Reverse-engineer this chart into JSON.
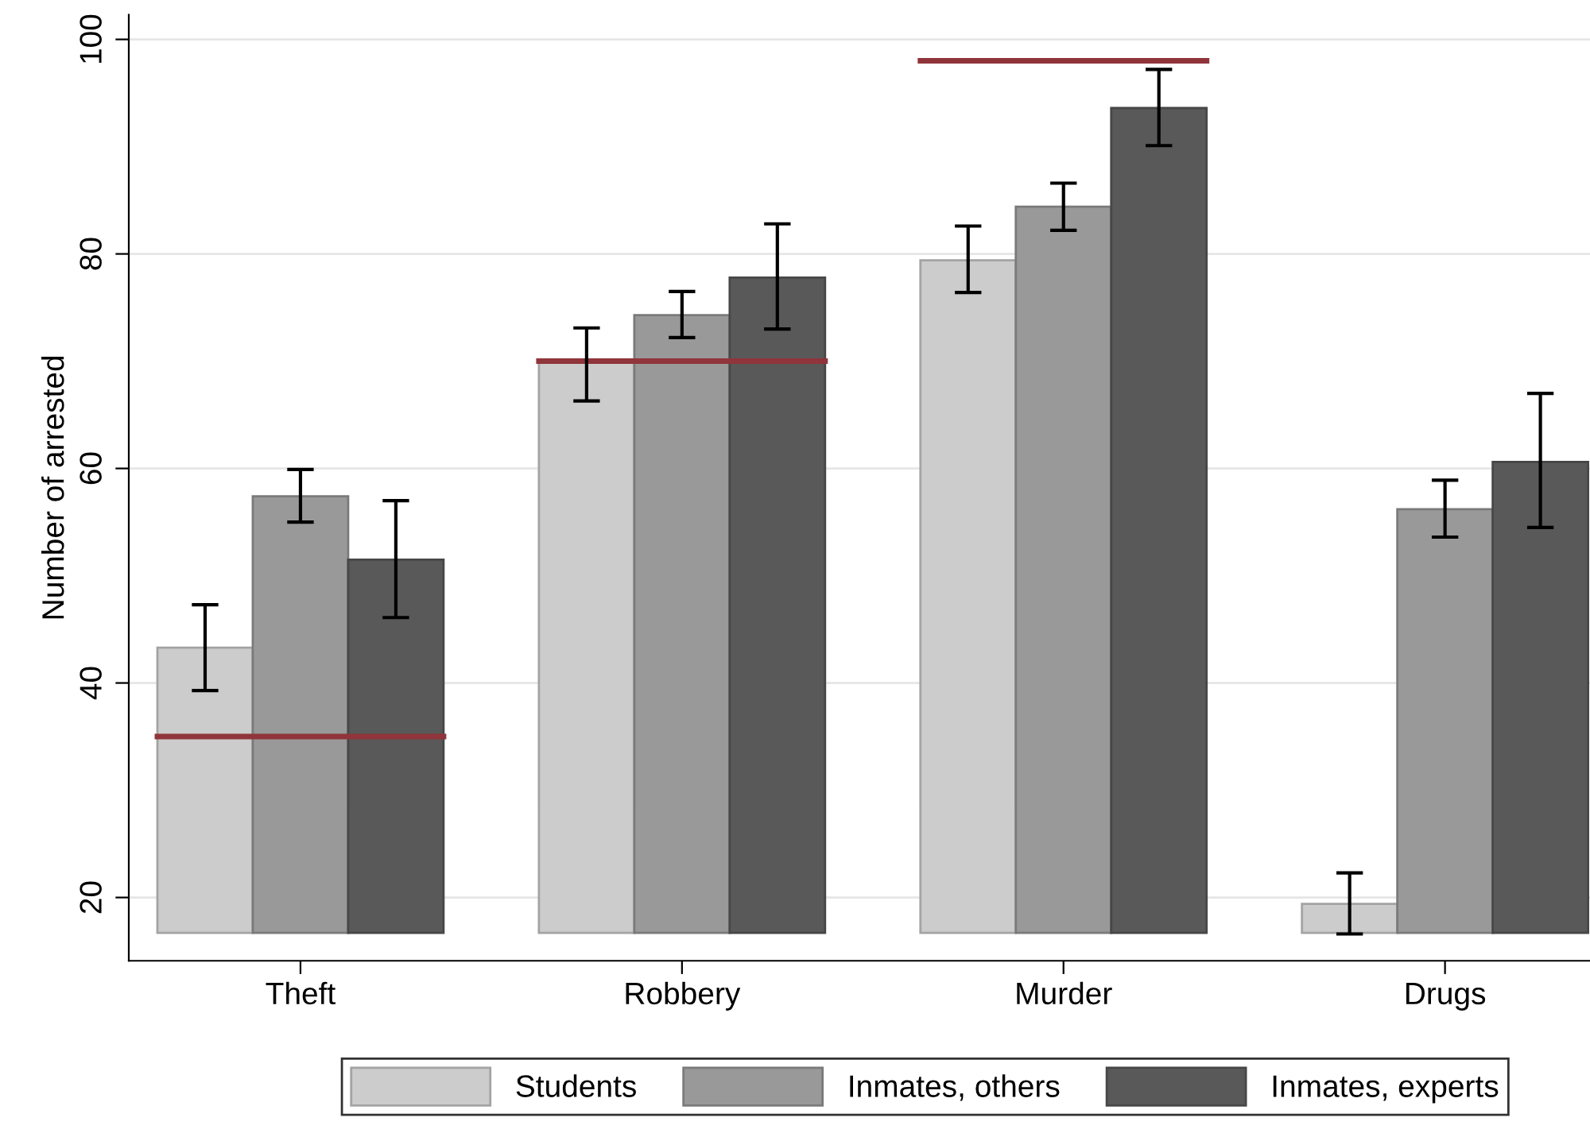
{
  "chart_data": {
    "type": "bar",
    "ylabel": "Number of arrested",
    "categories": [
      "Theft",
      "Robbery",
      "Murder",
      "Drugs"
    ],
    "series": [
      {
        "name": "Students",
        "color": "#cccccc",
        "base": [
          16.7,
          16.7,
          16.7,
          16.7
        ],
        "values": [
          26.6,
          53.3,
          62.7,
          2.7
        ],
        "errors": [
          [
            39.3,
            47.3
          ],
          [
            66.3,
            73.1
          ],
          [
            76.4,
            82.6
          ],
          [
            16.6,
            22.3
          ]
        ]
      },
      {
        "name": "Inmates, others",
        "color": "#999999",
        "base": [
          16.7,
          16.7,
          16.7,
          16.7
        ],
        "values": [
          40.7,
          57.6,
          67.7,
          39.5
        ],
        "errors": [
          [
            55.0,
            59.9
          ],
          [
            72.2,
            76.5
          ],
          [
            82.2,
            86.6
          ],
          [
            53.6,
            58.9
          ]
        ]
      },
      {
        "name": "Inmates, experts",
        "color": "#595959",
        "base": [
          16.7,
          16.7,
          16.7,
          16.7
        ],
        "values": [
          34.8,
          61.1,
          76.9,
          43.9
        ],
        "errors": [
          [
            46.1,
            57.0
          ],
          [
            73.0,
            82.8
          ],
          [
            90.1,
            97.2
          ],
          [
            54.5,
            67.0
          ]
        ]
      }
    ],
    "ref_lines": [
      {
        "axis": "y",
        "value": 35.0,
        "color": "#90353b"
      },
      {
        "axis": "y",
        "value": 70.0,
        "color": "#90353b"
      },
      {
        "axis": "y",
        "value": 98.0,
        "color": "#90353b"
      }
    ],
    "ylim": [
      14.1,
      102.3
    ],
    "yticks": [
      20,
      40,
      60,
      80,
      100
    ],
    "grid": "y",
    "legend": "bottom"
  }
}
